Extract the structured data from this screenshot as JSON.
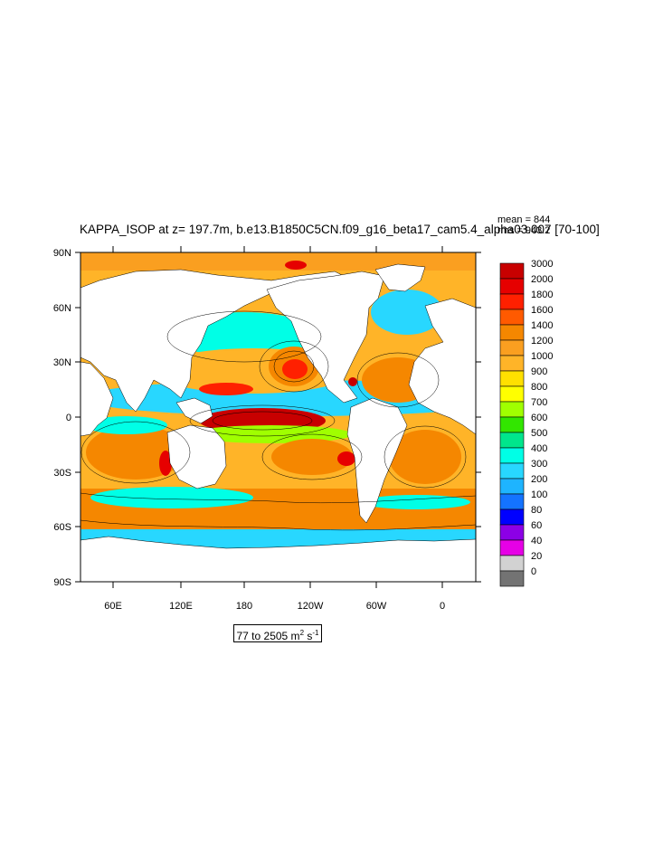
{
  "title": "KAPPA_ISOP at z= 197.7m, b.e13.B1850C5CN.f09_g16_beta17_cam5.4_alpha03.007 [70-100]",
  "stats": {
    "mean": "mean = 844",
    "rms": "rms = 943.2"
  },
  "lat_labels": [
    "90N",
    "60N",
    "30N",
    "0",
    "30S",
    "60S",
    "90S"
  ],
  "lon_labels": [
    "60E",
    "120E",
    "180",
    "120W",
    "60W",
    "0"
  ],
  "colorbar": {
    "levels": [
      "3000",
      "2000",
      "1800",
      "1600",
      "1400",
      "1200",
      "1000",
      "900",
      "800",
      "700",
      "600",
      "500",
      "400",
      "300",
      "200",
      "100",
      "80",
      "60",
      "40",
      "20",
      "0"
    ],
    "colors": [
      "#c80000",
      "#e60000",
      "#ff2000",
      "#ff5a00",
      "#f58700",
      "#fa9f20",
      "#ffb428",
      "#ffe000",
      "#ffff00",
      "#a0ff00",
      "#32e600",
      "#00e68c",
      "#00ffe6",
      "#28d7ff",
      "#1eb4ff",
      "#1473ff",
      "#0000ff",
      "#8c00e6",
      "#e600e6",
      "#d2d2d2",
      "#737373"
    ]
  },
  "range": {
    "prefix": "77 to 2505 m",
    "exp1": "2",
    "mid": " s",
    "exp2": "-1"
  },
  "colors": {
    "land": "#ffffff",
    "frame": "#000000"
  }
}
